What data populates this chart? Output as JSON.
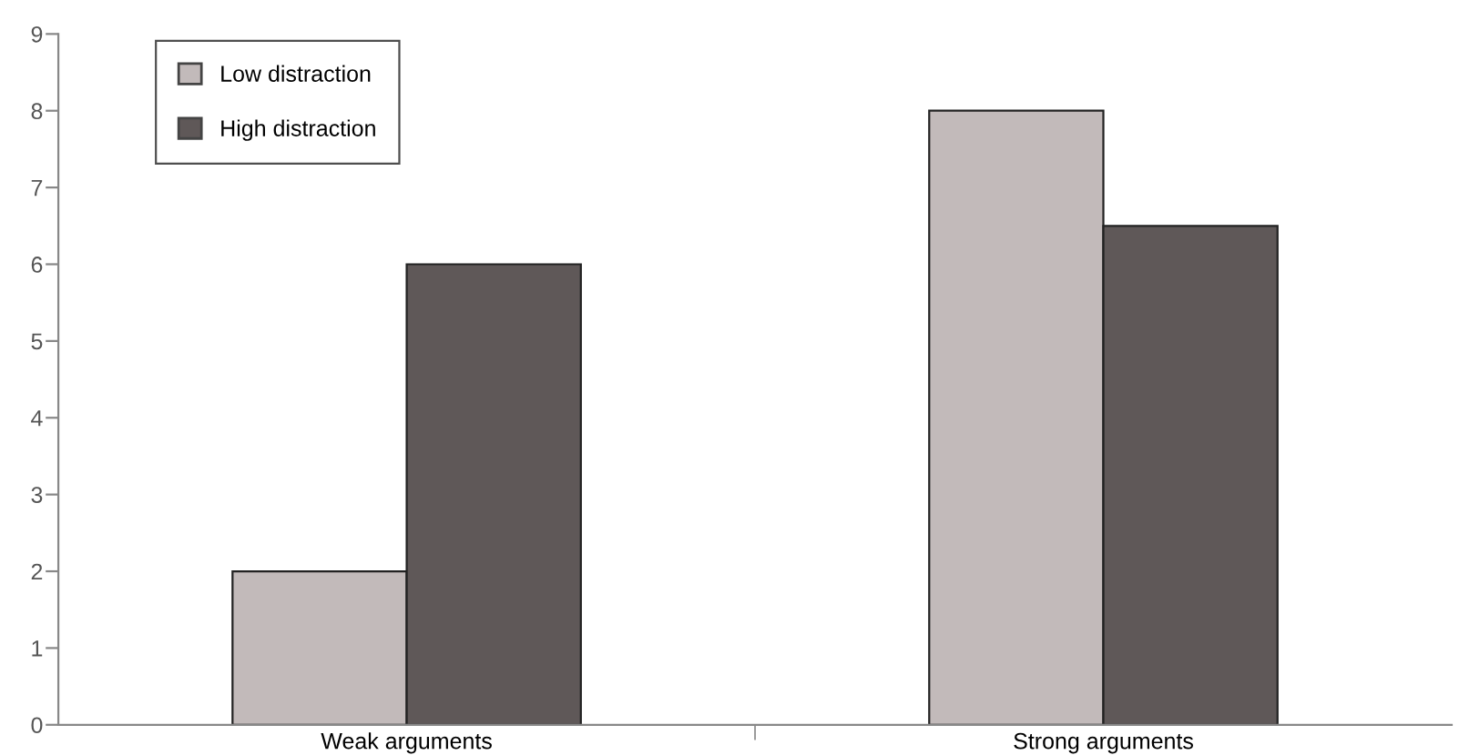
{
  "chart_data": {
    "type": "bar",
    "categories": [
      "Weak arguments",
      "Strong arguments"
    ],
    "series": [
      {
        "name": "Low distraction",
        "color": "#c2baba",
        "values": [
          2,
          8
        ]
      },
      {
        "name": "High distraction",
        "color": "#5f5858",
        "values": [
          6,
          6.5
        ]
      }
    ],
    "ylim": [
      0,
      9
    ],
    "yticks": [
      0,
      1,
      2,
      3,
      4,
      5,
      6,
      7,
      8,
      9
    ],
    "grid": false,
    "legend": "top left"
  }
}
